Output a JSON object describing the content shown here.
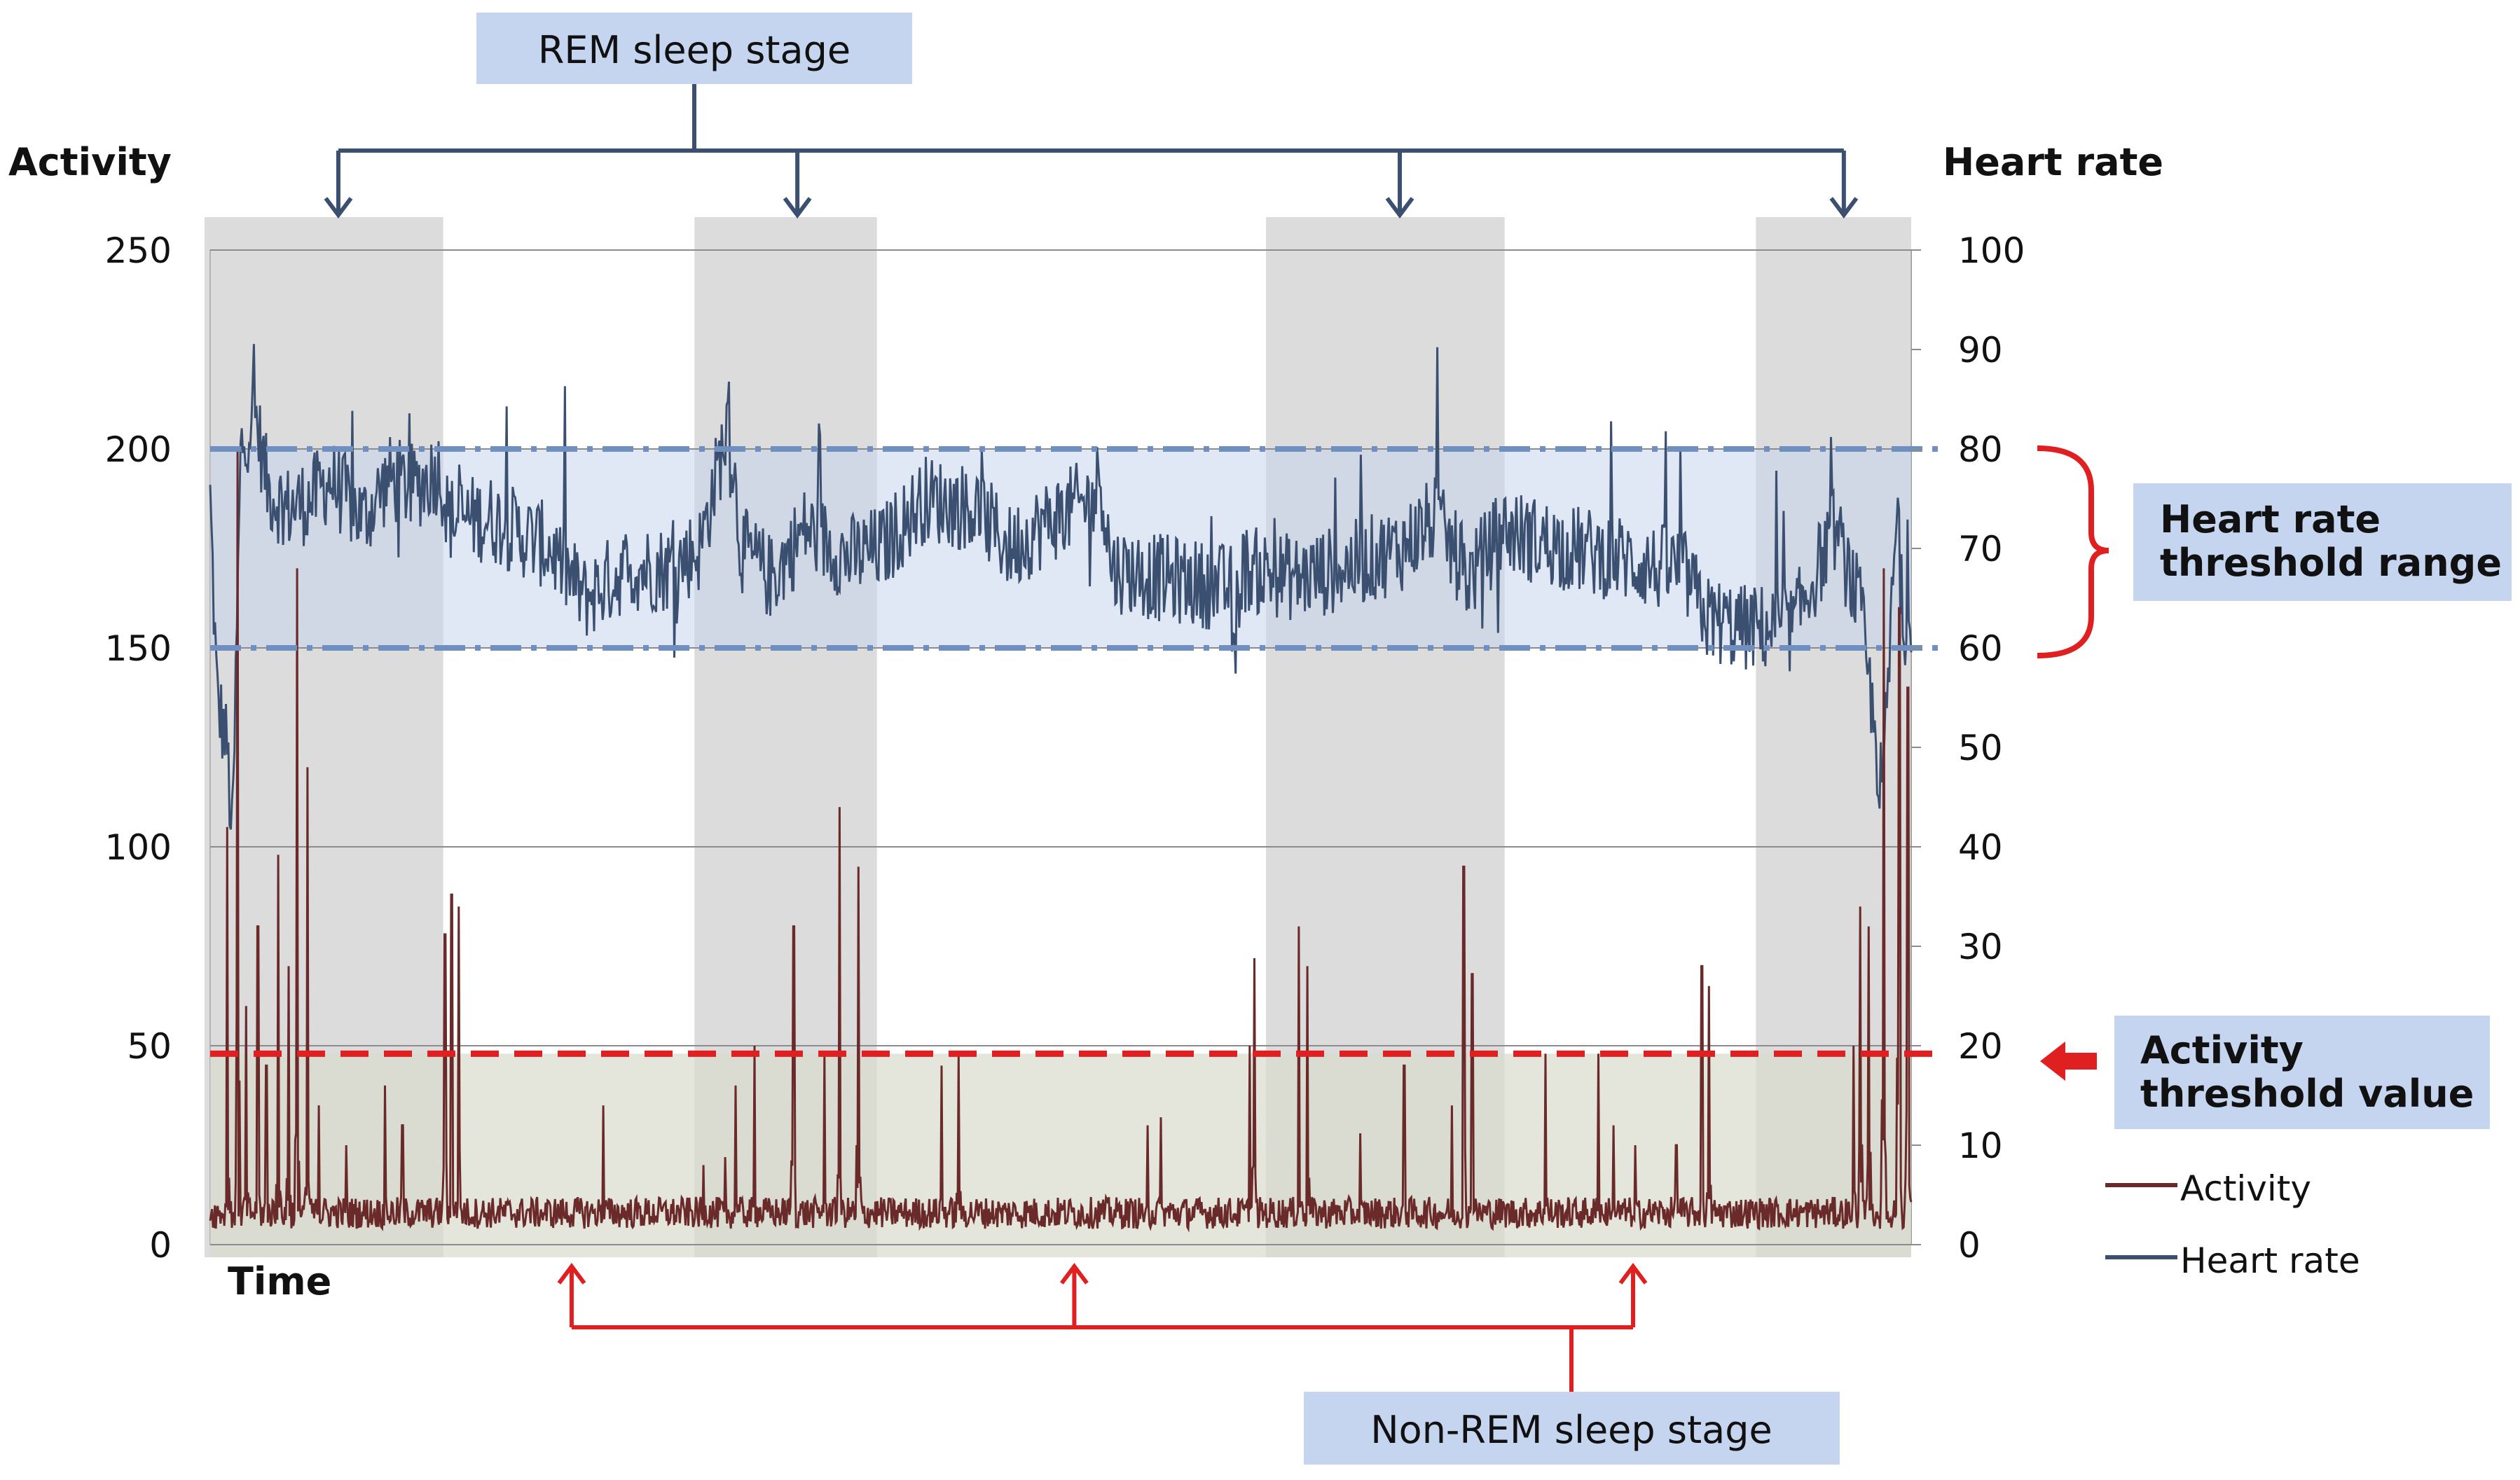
{
  "chart_data": {
    "type": "line",
    "title": "",
    "xlabel": "Time",
    "ylabel_left": "Activity",
    "ylabel_right": "Heart rate",
    "y_left_ticks": [
      "0",
      "50",
      "100",
      "150",
      "200",
      "250"
    ],
    "y_right_ticks": [
      "0",
      "10",
      "20",
      "30",
      "40",
      "50",
      "60",
      "70",
      "80",
      "90",
      "100"
    ],
    "ylim_left": [
      0,
      250
    ],
    "ylim_right": [
      0,
      100
    ],
    "grid": true,
    "legend_position": "right",
    "annotations": {
      "rem": "REM sleep stage",
      "nonrem": "Non-REM sleep stage",
      "hr_range_line1": "Heart rate",
      "hr_range_line2": "threshold range",
      "act_threshold_line1": "Activity",
      "act_threshold_line2": "threshold value"
    },
    "heart_rate_threshold_range": [
      60,
      80
    ],
    "activity_threshold_value": 48,
    "rem_periods_fraction": [
      [
        0.0,
        0.137
      ],
      [
        0.288,
        0.392
      ],
      [
        0.624,
        0.761
      ],
      [
        0.912,
        1.0
      ]
    ],
    "series": [
      {
        "name": "Activity",
        "axis": "left",
        "color": "#6b2a2a",
        "baseline": 8,
        "spikes": [
          {
            "t": 0.01,
            "v": 105
          },
          {
            "t": 0.016,
            "v": 200
          },
          {
            "t": 0.021,
            "v": 60
          },
          {
            "t": 0.028,
            "v": 80
          },
          {
            "t": 0.033,
            "v": 45
          },
          {
            "t": 0.04,
            "v": 98
          },
          {
            "t": 0.046,
            "v": 70
          },
          {
            "t": 0.051,
            "v": 170
          },
          {
            "t": 0.057,
            "v": 120
          },
          {
            "t": 0.064,
            "v": 35
          },
          {
            "t": 0.08,
            "v": 25
          },
          {
            "t": 0.103,
            "v": 40
          },
          {
            "t": 0.113,
            "v": 30
          },
          {
            "t": 0.138,
            "v": 78
          },
          {
            "t": 0.142,
            "v": 88
          },
          {
            "t": 0.146,
            "v": 85
          },
          {
            "t": 0.231,
            "v": 35
          },
          {
            "t": 0.29,
            "v": 20
          },
          {
            "t": 0.303,
            "v": 22
          },
          {
            "t": 0.309,
            "v": 40
          },
          {
            "t": 0.32,
            "v": 50
          },
          {
            "t": 0.343,
            "v": 80
          },
          {
            "t": 0.361,
            "v": 48
          },
          {
            "t": 0.37,
            "v": 110
          },
          {
            "t": 0.381,
            "v": 95
          },
          {
            "t": 0.43,
            "v": 45
          },
          {
            "t": 0.44,
            "v": 48
          },
          {
            "t": 0.551,
            "v": 30
          },
          {
            "t": 0.559,
            "v": 32
          },
          {
            "t": 0.611,
            "v": 50
          },
          {
            "t": 0.614,
            "v": 72
          },
          {
            "t": 0.64,
            "v": 80
          },
          {
            "t": 0.645,
            "v": 70
          },
          {
            "t": 0.676,
            "v": 28
          },
          {
            "t": 0.702,
            "v": 45
          },
          {
            "t": 0.73,
            "v": 35
          },
          {
            "t": 0.737,
            "v": 95
          },
          {
            "t": 0.742,
            "v": 68
          },
          {
            "t": 0.785,
            "v": 48
          },
          {
            "t": 0.816,
            "v": 48
          },
          {
            "t": 0.825,
            "v": 30
          },
          {
            "t": 0.838,
            "v": 25
          },
          {
            "t": 0.862,
            "v": 25
          },
          {
            "t": 0.877,
            "v": 70
          },
          {
            "t": 0.881,
            "v": 65
          },
          {
            "t": 0.966,
            "v": 50
          },
          {
            "t": 0.97,
            "v": 85
          },
          {
            "t": 0.975,
            "v": 80
          },
          {
            "t": 0.984,
            "v": 170
          },
          {
            "t": 0.993,
            "v": 160
          },
          {
            "t": 0.998,
            "v": 140
          }
        ]
      },
      {
        "name": "Heart rate",
        "axis": "right",
        "color": "#3b5070",
        "anchors": [
          [
            0.0,
            75
          ],
          [
            0.004,
            55
          ],
          [
            0.01,
            50
          ],
          [
            0.013,
            40
          ],
          [
            0.018,
            80
          ],
          [
            0.026,
            84
          ],
          [
            0.034,
            76
          ],
          [
            0.045,
            74
          ],
          [
            0.06,
            75
          ],
          [
            0.07,
            77
          ],
          [
            0.09,
            73
          ],
          [
            0.105,
            77
          ],
          [
            0.12,
            76
          ],
          [
            0.135,
            78
          ],
          [
            0.14,
            73
          ],
          [
            0.165,
            73
          ],
          [
            0.2,
            70
          ],
          [
            0.22,
            65
          ],
          [
            0.245,
            68
          ],
          [
            0.27,
            68
          ],
          [
            0.288,
            70
          ],
          [
            0.305,
            83
          ],
          [
            0.312,
            70
          ],
          [
            0.33,
            67
          ],
          [
            0.35,
            72
          ],
          [
            0.375,
            69
          ],
          [
            0.395,
            70
          ],
          [
            0.42,
            75
          ],
          [
            0.45,
            74
          ],
          [
            0.47,
            70
          ],
          [
            0.495,
            73
          ],
          [
            0.52,
            75
          ],
          [
            0.523,
            78
          ],
          [
            0.53,
            68
          ],
          [
            0.56,
            67
          ],
          [
            0.6,
            66
          ],
          [
            0.602,
            57
          ],
          [
            0.606,
            68
          ],
          [
            0.64,
            67
          ],
          [
            0.665,
            68
          ],
          [
            0.7,
            70
          ],
          [
            0.72,
            73
          ],
          [
            0.74,
            67
          ],
          [
            0.76,
            72
          ],
          [
            0.775,
            71
          ],
          [
            0.8,
            70
          ],
          [
            0.83,
            69
          ],
          [
            0.85,
            68
          ],
          [
            0.865,
            68
          ],
          [
            0.88,
            63
          ],
          [
            0.9,
            62
          ],
          [
            0.93,
            62
          ],
          [
            0.955,
            72
          ],
          [
            0.97,
            64
          ],
          [
            0.983,
            45
          ],
          [
            0.992,
            75
          ],
          [
            0.995,
            62
          ],
          [
            1.0,
            64
          ]
        ]
      }
    ]
  },
  "legend": {
    "items": [
      {
        "label": "Activity",
        "color": "#6b2a2a"
      },
      {
        "label": "Heart rate",
        "color": "#3b5070"
      }
    ]
  }
}
